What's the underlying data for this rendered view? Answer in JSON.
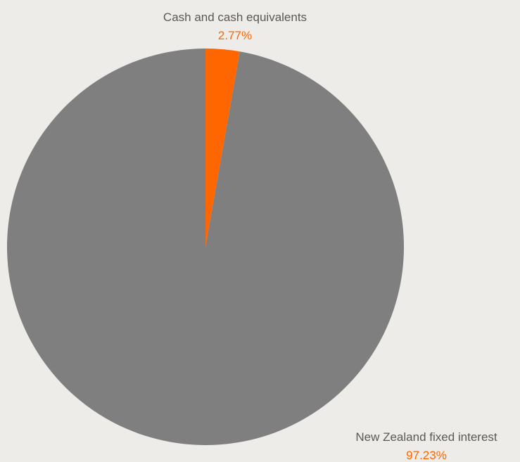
{
  "chart_data": {
    "type": "pie",
    "title": "",
    "slices": [
      {
        "label": "Cash and cash equivalents",
        "value": 2.77,
        "display": "2.77%",
        "color": "#FF6600"
      },
      {
        "label": "New Zealand fixed interest",
        "value": 97.23,
        "display": "97.23%",
        "color": "#7F7F7F"
      }
    ],
    "start_angle": "top",
    "direction": "clockwise",
    "legend": "none",
    "label_color": "#595959",
    "value_color": "#FF6600",
    "background": "#EEECE8"
  }
}
